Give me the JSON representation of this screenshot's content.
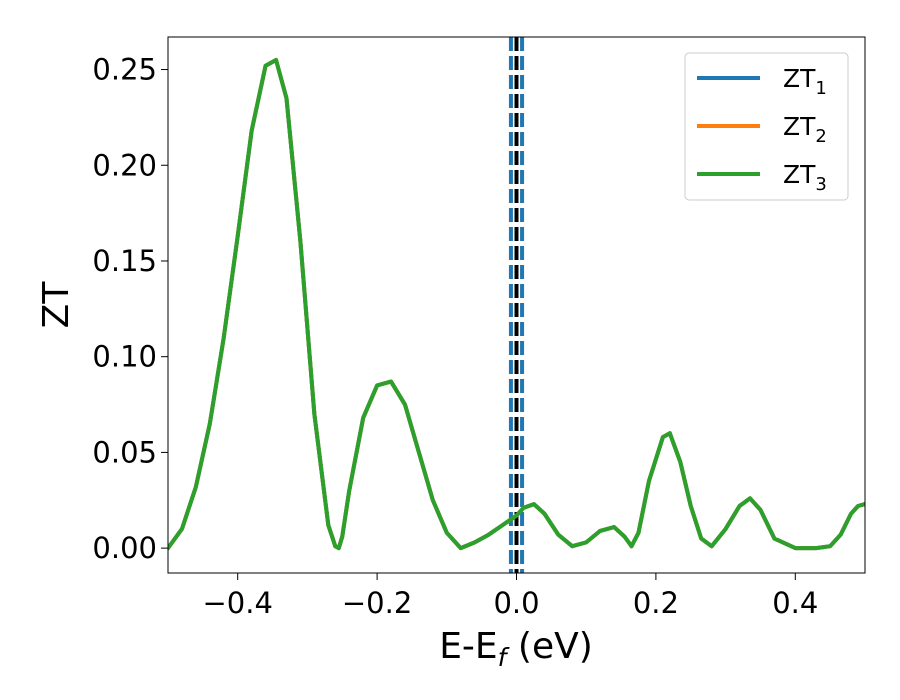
{
  "chart_data": {
    "type": "line",
    "xlabel": "E-E",
    "xlabel_sub": "f",
    "xlabel_suffix": " (eV)",
    "ylabel": "ZT",
    "xlim": [
      -0.5,
      0.5
    ],
    "ylim": [
      -0.013,
      0.267
    ],
    "xticks": [
      -0.4,
      -0.2,
      0.0,
      0.2,
      0.4
    ],
    "xtick_labels": [
      "−0.4",
      "−0.2",
      "0.0",
      "0.2",
      "0.4"
    ],
    "yticks": [
      0.0,
      0.05,
      0.1,
      0.15,
      0.2,
      0.25
    ],
    "ytick_labels": [
      "0.00",
      "0.05",
      "0.10",
      "0.15",
      "0.20",
      "0.25"
    ],
    "grid": false,
    "legend": "top-right",
    "vlines": [
      {
        "x": -0.008,
        "color": "#1f77b4",
        "style": "dashed"
      },
      {
        "x": 0.0,
        "color": "#000000",
        "style": "dashed"
      },
      {
        "x": 0.008,
        "color": "#1f77b4",
        "style": "dashed"
      }
    ],
    "series": [
      {
        "name": "ZT",
        "sub": "1",
        "color": "#1f77b4",
        "x": [
          -0.5,
          -0.48,
          -0.46,
          -0.44,
          -0.42,
          -0.4,
          -0.38,
          -0.36,
          -0.345,
          -0.33,
          -0.31,
          -0.29,
          -0.27,
          -0.26,
          -0.255,
          -0.25,
          -0.24,
          -0.22,
          -0.2,
          -0.18,
          -0.16,
          -0.14,
          -0.12,
          -0.1,
          -0.08,
          -0.06,
          -0.04,
          -0.02,
          0.0,
          0.01,
          0.025,
          0.04,
          0.06,
          0.08,
          0.1,
          0.12,
          0.14,
          0.155,
          0.165,
          0.175,
          0.19,
          0.21,
          0.22,
          0.235,
          0.25,
          0.265,
          0.28,
          0.3,
          0.32,
          0.335,
          0.35,
          0.37,
          0.4,
          0.43,
          0.45,
          0.465,
          0.48,
          0.49,
          0.5
        ],
        "y": [
          0.0,
          0.01,
          0.032,
          0.065,
          0.11,
          0.163,
          0.218,
          0.252,
          0.255,
          0.235,
          0.16,
          0.07,
          0.012,
          0.001,
          0.0,
          0.006,
          0.03,
          0.068,
          0.085,
          0.087,
          0.075,
          0.05,
          0.025,
          0.008,
          0.0,
          0.003,
          0.007,
          0.012,
          0.017,
          0.021,
          0.023,
          0.018,
          0.007,
          0.001,
          0.003,
          0.009,
          0.011,
          0.006,
          0.001,
          0.008,
          0.035,
          0.058,
          0.06,
          0.045,
          0.022,
          0.005,
          0.001,
          0.01,
          0.022,
          0.026,
          0.02,
          0.005,
          0.0,
          0.0,
          0.001,
          0.007,
          0.018,
          0.022,
          0.023
        ]
      },
      {
        "name": "ZT",
        "sub": "2",
        "color": "#ff7f0e",
        "x": [
          -0.5,
          -0.48,
          -0.46,
          -0.44,
          -0.42,
          -0.4,
          -0.38,
          -0.36,
          -0.345,
          -0.33,
          -0.31,
          -0.29,
          -0.27,
          -0.26,
          -0.255,
          -0.25,
          -0.24,
          -0.22,
          -0.2,
          -0.18,
          -0.16,
          -0.14,
          -0.12,
          -0.1,
          -0.08,
          -0.06,
          -0.04,
          -0.02,
          0.0,
          0.01,
          0.025,
          0.04,
          0.06,
          0.08,
          0.1,
          0.12,
          0.14,
          0.155,
          0.165,
          0.175,
          0.19,
          0.21,
          0.22,
          0.235,
          0.25,
          0.265,
          0.28,
          0.3,
          0.32,
          0.335,
          0.35,
          0.37,
          0.4,
          0.43,
          0.45,
          0.465,
          0.48,
          0.49,
          0.5
        ],
        "y": [
          0.0,
          0.01,
          0.032,
          0.065,
          0.11,
          0.163,
          0.218,
          0.252,
          0.255,
          0.235,
          0.16,
          0.07,
          0.012,
          0.001,
          0.0,
          0.006,
          0.03,
          0.068,
          0.085,
          0.087,
          0.075,
          0.05,
          0.025,
          0.008,
          0.0,
          0.003,
          0.007,
          0.012,
          0.017,
          0.021,
          0.023,
          0.018,
          0.007,
          0.001,
          0.003,
          0.009,
          0.011,
          0.006,
          0.001,
          0.008,
          0.035,
          0.058,
          0.06,
          0.045,
          0.022,
          0.005,
          0.001,
          0.01,
          0.022,
          0.026,
          0.02,
          0.005,
          0.0,
          0.0,
          0.001,
          0.007,
          0.018,
          0.022,
          0.023
        ]
      },
      {
        "name": "ZT",
        "sub": "3",
        "color": "#2ca02c",
        "x": [
          -0.5,
          -0.48,
          -0.46,
          -0.44,
          -0.42,
          -0.4,
          -0.38,
          -0.36,
          -0.345,
          -0.33,
          -0.31,
          -0.29,
          -0.27,
          -0.26,
          -0.255,
          -0.25,
          -0.24,
          -0.22,
          -0.2,
          -0.18,
          -0.16,
          -0.14,
          -0.12,
          -0.1,
          -0.08,
          -0.06,
          -0.04,
          -0.02,
          0.0,
          0.01,
          0.025,
          0.04,
          0.06,
          0.08,
          0.1,
          0.12,
          0.14,
          0.155,
          0.165,
          0.175,
          0.19,
          0.21,
          0.22,
          0.235,
          0.25,
          0.265,
          0.28,
          0.3,
          0.32,
          0.335,
          0.35,
          0.37,
          0.4,
          0.43,
          0.45,
          0.465,
          0.48,
          0.49,
          0.5
        ],
        "y": [
          0.0,
          0.01,
          0.032,
          0.065,
          0.11,
          0.163,
          0.218,
          0.252,
          0.255,
          0.235,
          0.16,
          0.07,
          0.012,
          0.001,
          0.0,
          0.006,
          0.03,
          0.068,
          0.085,
          0.087,
          0.075,
          0.05,
          0.025,
          0.008,
          0.0,
          0.003,
          0.007,
          0.012,
          0.017,
          0.021,
          0.023,
          0.018,
          0.007,
          0.001,
          0.003,
          0.009,
          0.011,
          0.006,
          0.001,
          0.008,
          0.035,
          0.058,
          0.06,
          0.045,
          0.022,
          0.005,
          0.001,
          0.01,
          0.022,
          0.026,
          0.02,
          0.005,
          0.0,
          0.0,
          0.001,
          0.007,
          0.018,
          0.022,
          0.023
        ]
      }
    ]
  }
}
